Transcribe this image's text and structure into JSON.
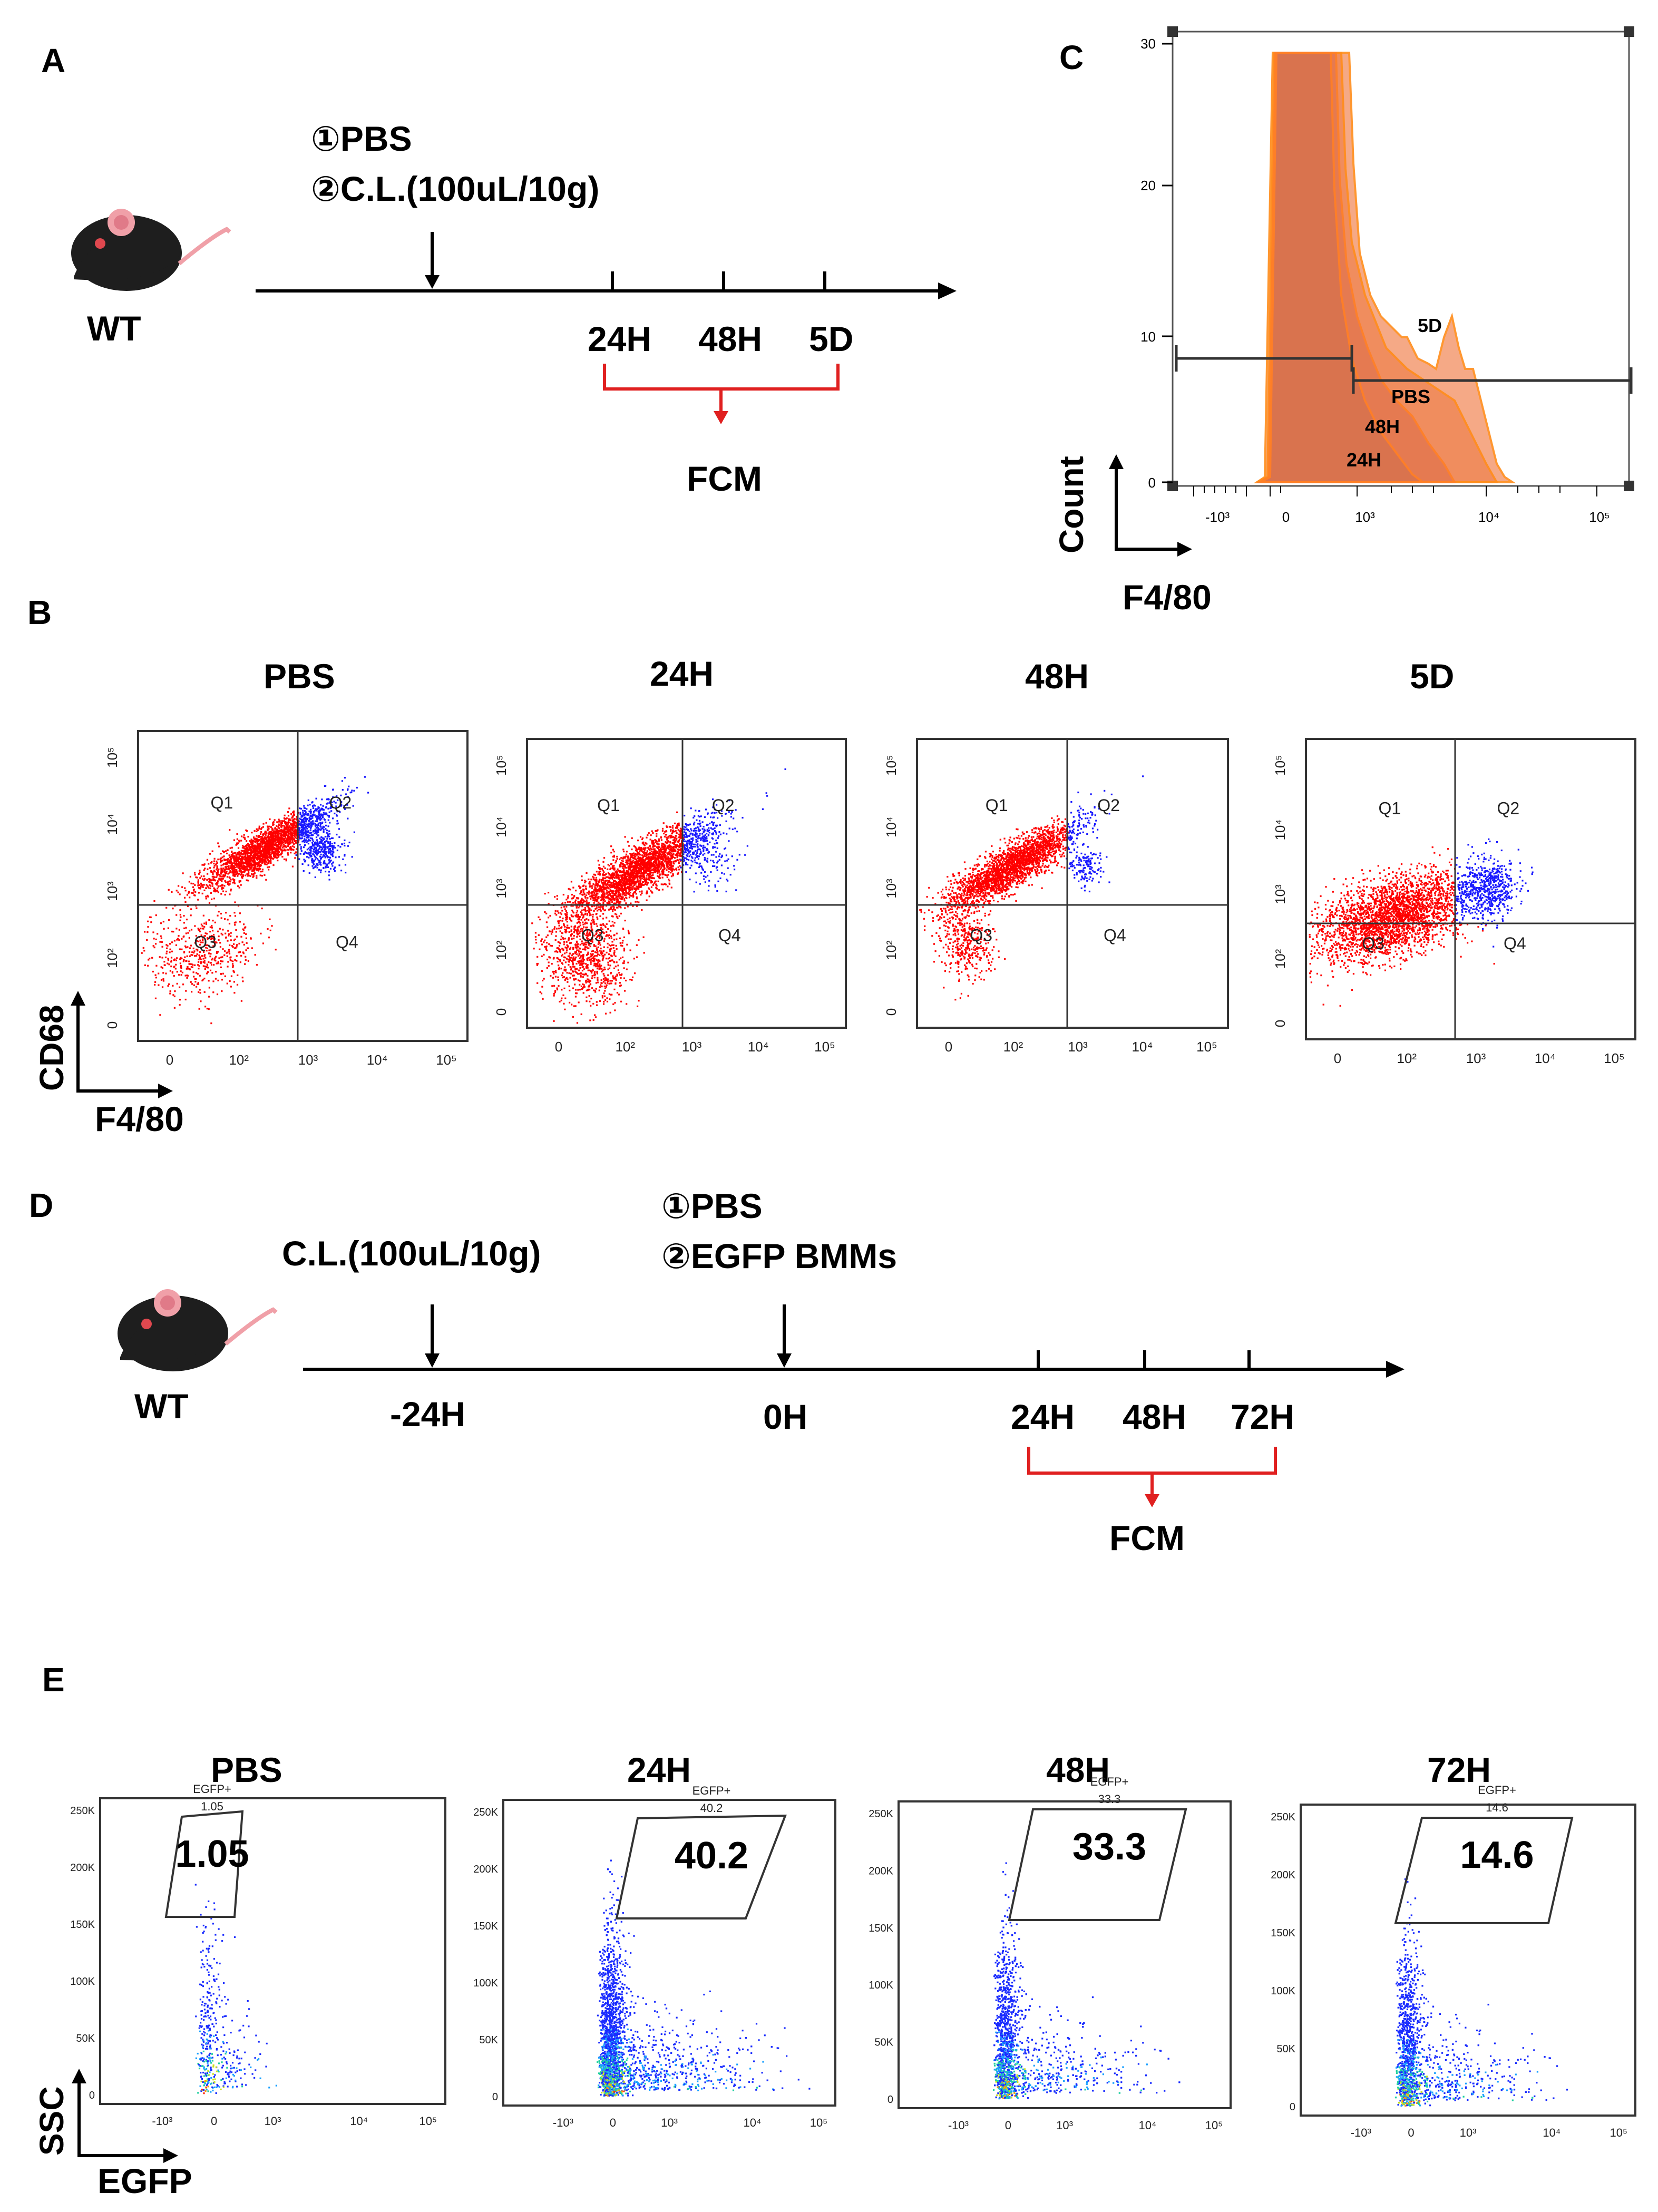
{
  "panels": {
    "A": {
      "letter": "A",
      "mouse_label": "WT",
      "treatments": [
        "①PBS",
        "②C.L.(100uL/10g)"
      ],
      "timepoints": [
        "24H",
        "48H",
        "5D"
      ],
      "assay": "FCM"
    },
    "B": {
      "letter": "B",
      "y_axis": "CD68",
      "x_axis": "F4/80",
      "plots": [
        {
          "title": "PBS",
          "quadrants": [
            "Q1",
            "Q2",
            "Q3",
            "Q4"
          ]
        },
        {
          "title": "24H",
          "quadrants": [
            "Q1",
            "Q2",
            "Q3",
            "Q4"
          ]
        },
        {
          "title": "48H",
          "quadrants": [
            "Q1",
            "Q2",
            "Q3",
            "Q4"
          ]
        },
        {
          "title": "5D",
          "quadrants": [
            "Q1",
            "Q2",
            "Q3",
            "Q4"
          ]
        }
      ],
      "x_ticks": [
        "0",
        "10²",
        "10³",
        "10⁴",
        "10⁵"
      ],
      "y_ticks": [
        "0",
        "10²",
        "10³",
        "10⁴",
        "10⁵"
      ]
    },
    "C": {
      "letter": "C",
      "y_axis": "Count",
      "x_axis": "F4/80",
      "y_ticks": [
        "0",
        "10",
        "20",
        "30"
      ],
      "x_ticks": [
        "-10³",
        "0",
        "10³",
        "10⁴",
        "10⁵"
      ],
      "curve_labels": [
        "5D",
        "PBS",
        "48H",
        "24H"
      ]
    },
    "D": {
      "letter": "D",
      "mouse_label": "WT",
      "pre_treatment": "C.L.(100uL/10g)",
      "treatments": [
        "①PBS",
        "②EGFP BMMs"
      ],
      "timepoints": [
        "-24H",
        "0H",
        "24H",
        "48H",
        "72H"
      ],
      "assay": "FCM"
    },
    "E": {
      "letter": "E",
      "y_axis": "SSC",
      "x_axis": "EGFP",
      "gate_name": "EGFP+",
      "y_ticks": [
        "0",
        "50K",
        "100K",
        "150K",
        "200K",
        "250K"
      ],
      "x_ticks": [
        "-10³",
        "0",
        "10³",
        "10⁴",
        "10⁵"
      ],
      "plots": [
        {
          "title": "PBS",
          "value": "1.05"
        },
        {
          "title": "24H",
          "value": "40.2"
        },
        {
          "title": "48H",
          "value": "33.3"
        },
        {
          "title": "72H",
          "value": "14.6"
        }
      ]
    }
  },
  "colors": {
    "q1_events": "#ff0000",
    "q2_events": "#1a1aff",
    "histogram_fill": "#e87a4a",
    "histogram_line": "#ff8c1a",
    "bracket": "#e02020"
  }
}
